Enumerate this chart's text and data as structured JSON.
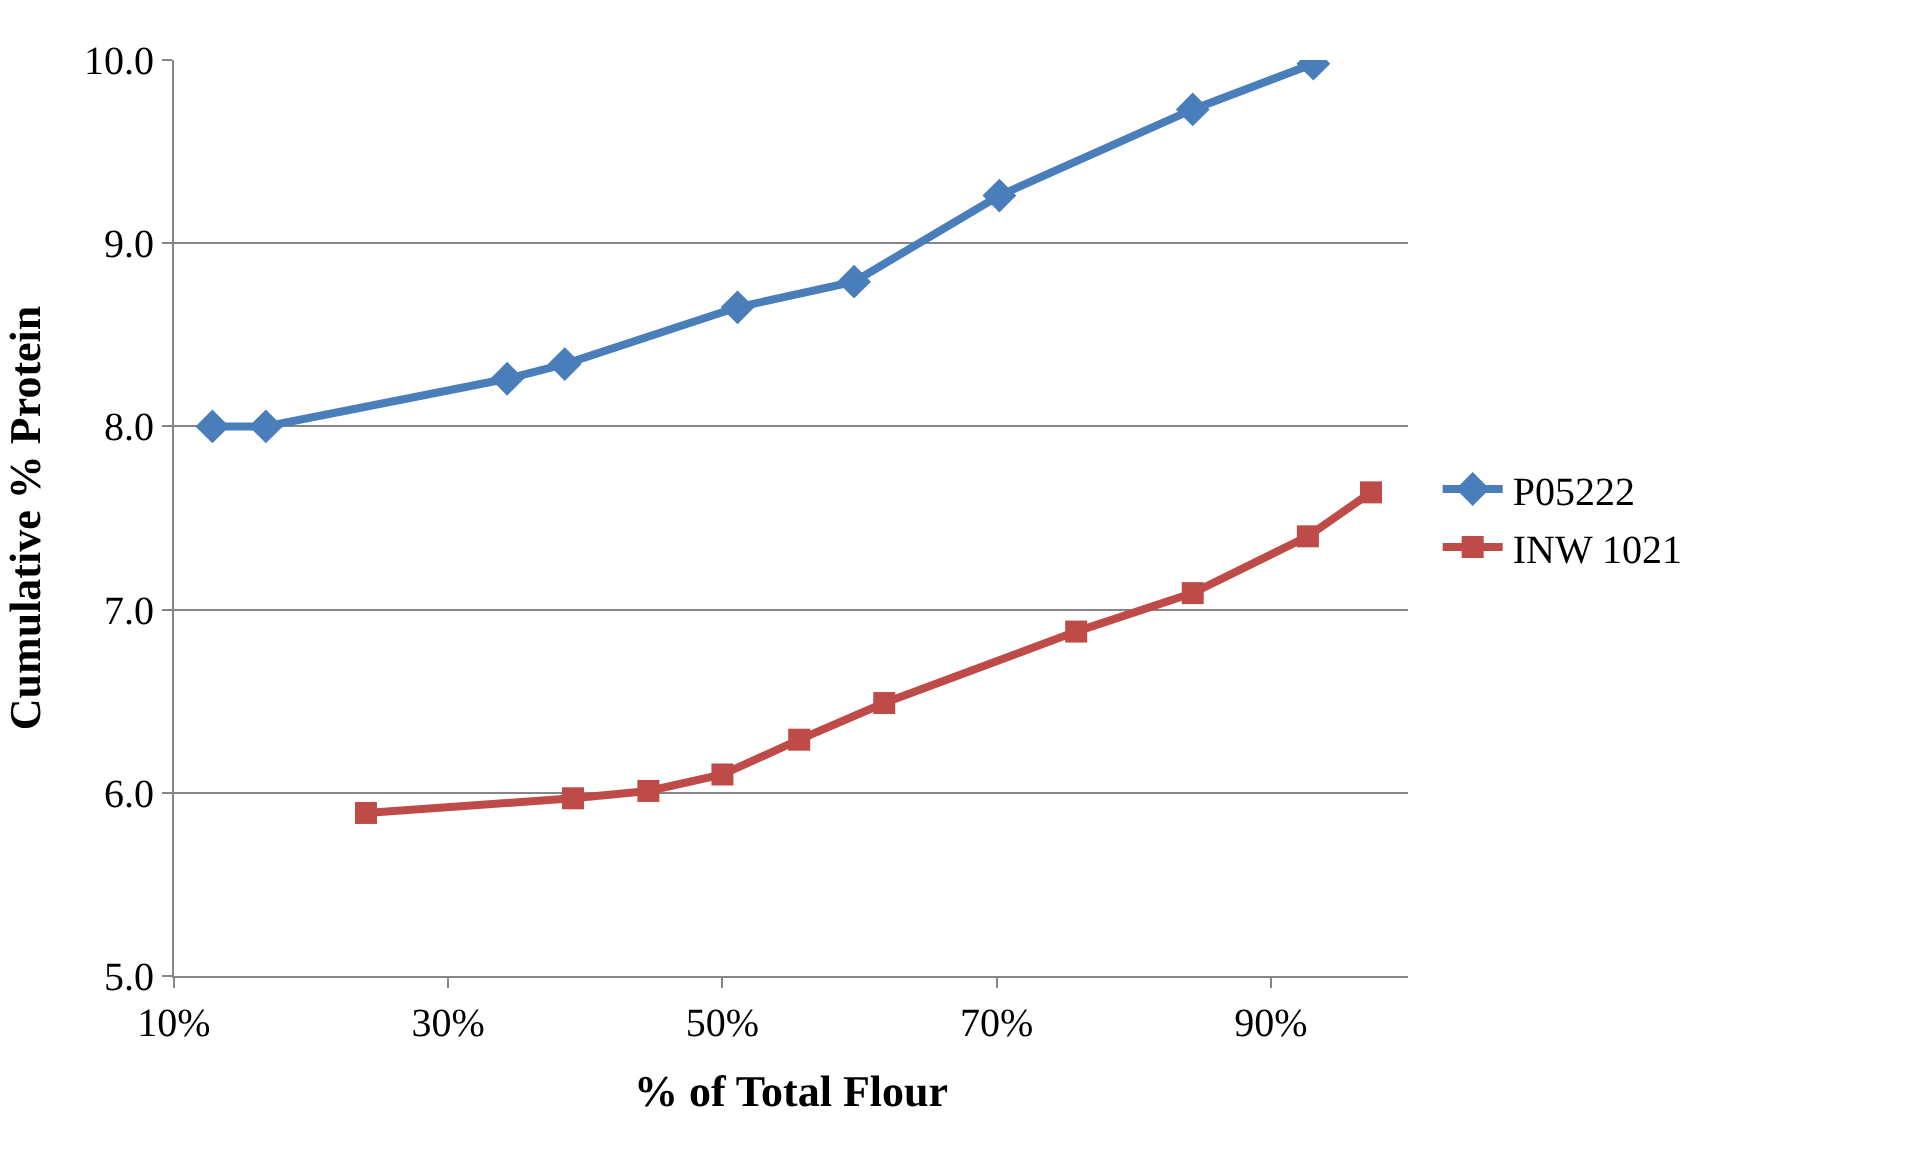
{
  "chart_data": {
    "type": "line",
    "xlabel": "% of Total Flour",
    "ylabel": "Cumulative % Protein",
    "xlim": [
      10,
      100
    ],
    "xticks": [
      {
        "value": 10,
        "label": "10%"
      },
      {
        "value": 30,
        "label": "30%"
      },
      {
        "value": 50,
        "label": "50%"
      },
      {
        "value": 70,
        "label": "70%"
      },
      {
        "value": 90,
        "label": "90%"
      }
    ],
    "ylim": [
      5,
      10
    ],
    "yticks": [
      {
        "value": 5,
        "label": "5.0"
      },
      {
        "value": 6,
        "label": "6.0"
      },
      {
        "value": 7,
        "label": "7.0"
      },
      {
        "value": 8,
        "label": "8.0"
      },
      {
        "value": 9,
        "label": "9.0"
      },
      {
        "value": 10,
        "label": "10.0"
      }
    ],
    "grid": "y",
    "legend": "right",
    "line_style": "solid",
    "series": [
      {
        "name": "P05222",
        "color": "#4a7ebb",
        "marker": "diamond",
        "x": [
          12.8,
          16.7,
          34.3,
          38.5,
          51.1,
          59.6,
          70.2,
          84.3,
          93.1
        ],
        "values": [
          8.0,
          8.0,
          8.26,
          8.34,
          8.65,
          8.79,
          9.26,
          9.73,
          9.98
        ]
      },
      {
        "name": "INW 1021",
        "color": "#be4b48",
        "marker": "square",
        "x": [
          24.0,
          39.1,
          44.6,
          50.0,
          55.6,
          61.8,
          75.8,
          84.3,
          92.7,
          97.3
        ],
        "values": [
          5.89,
          5.97,
          6.01,
          6.1,
          6.29,
          6.49,
          6.88,
          7.09,
          7.4,
          7.64
        ]
      }
    ]
  }
}
